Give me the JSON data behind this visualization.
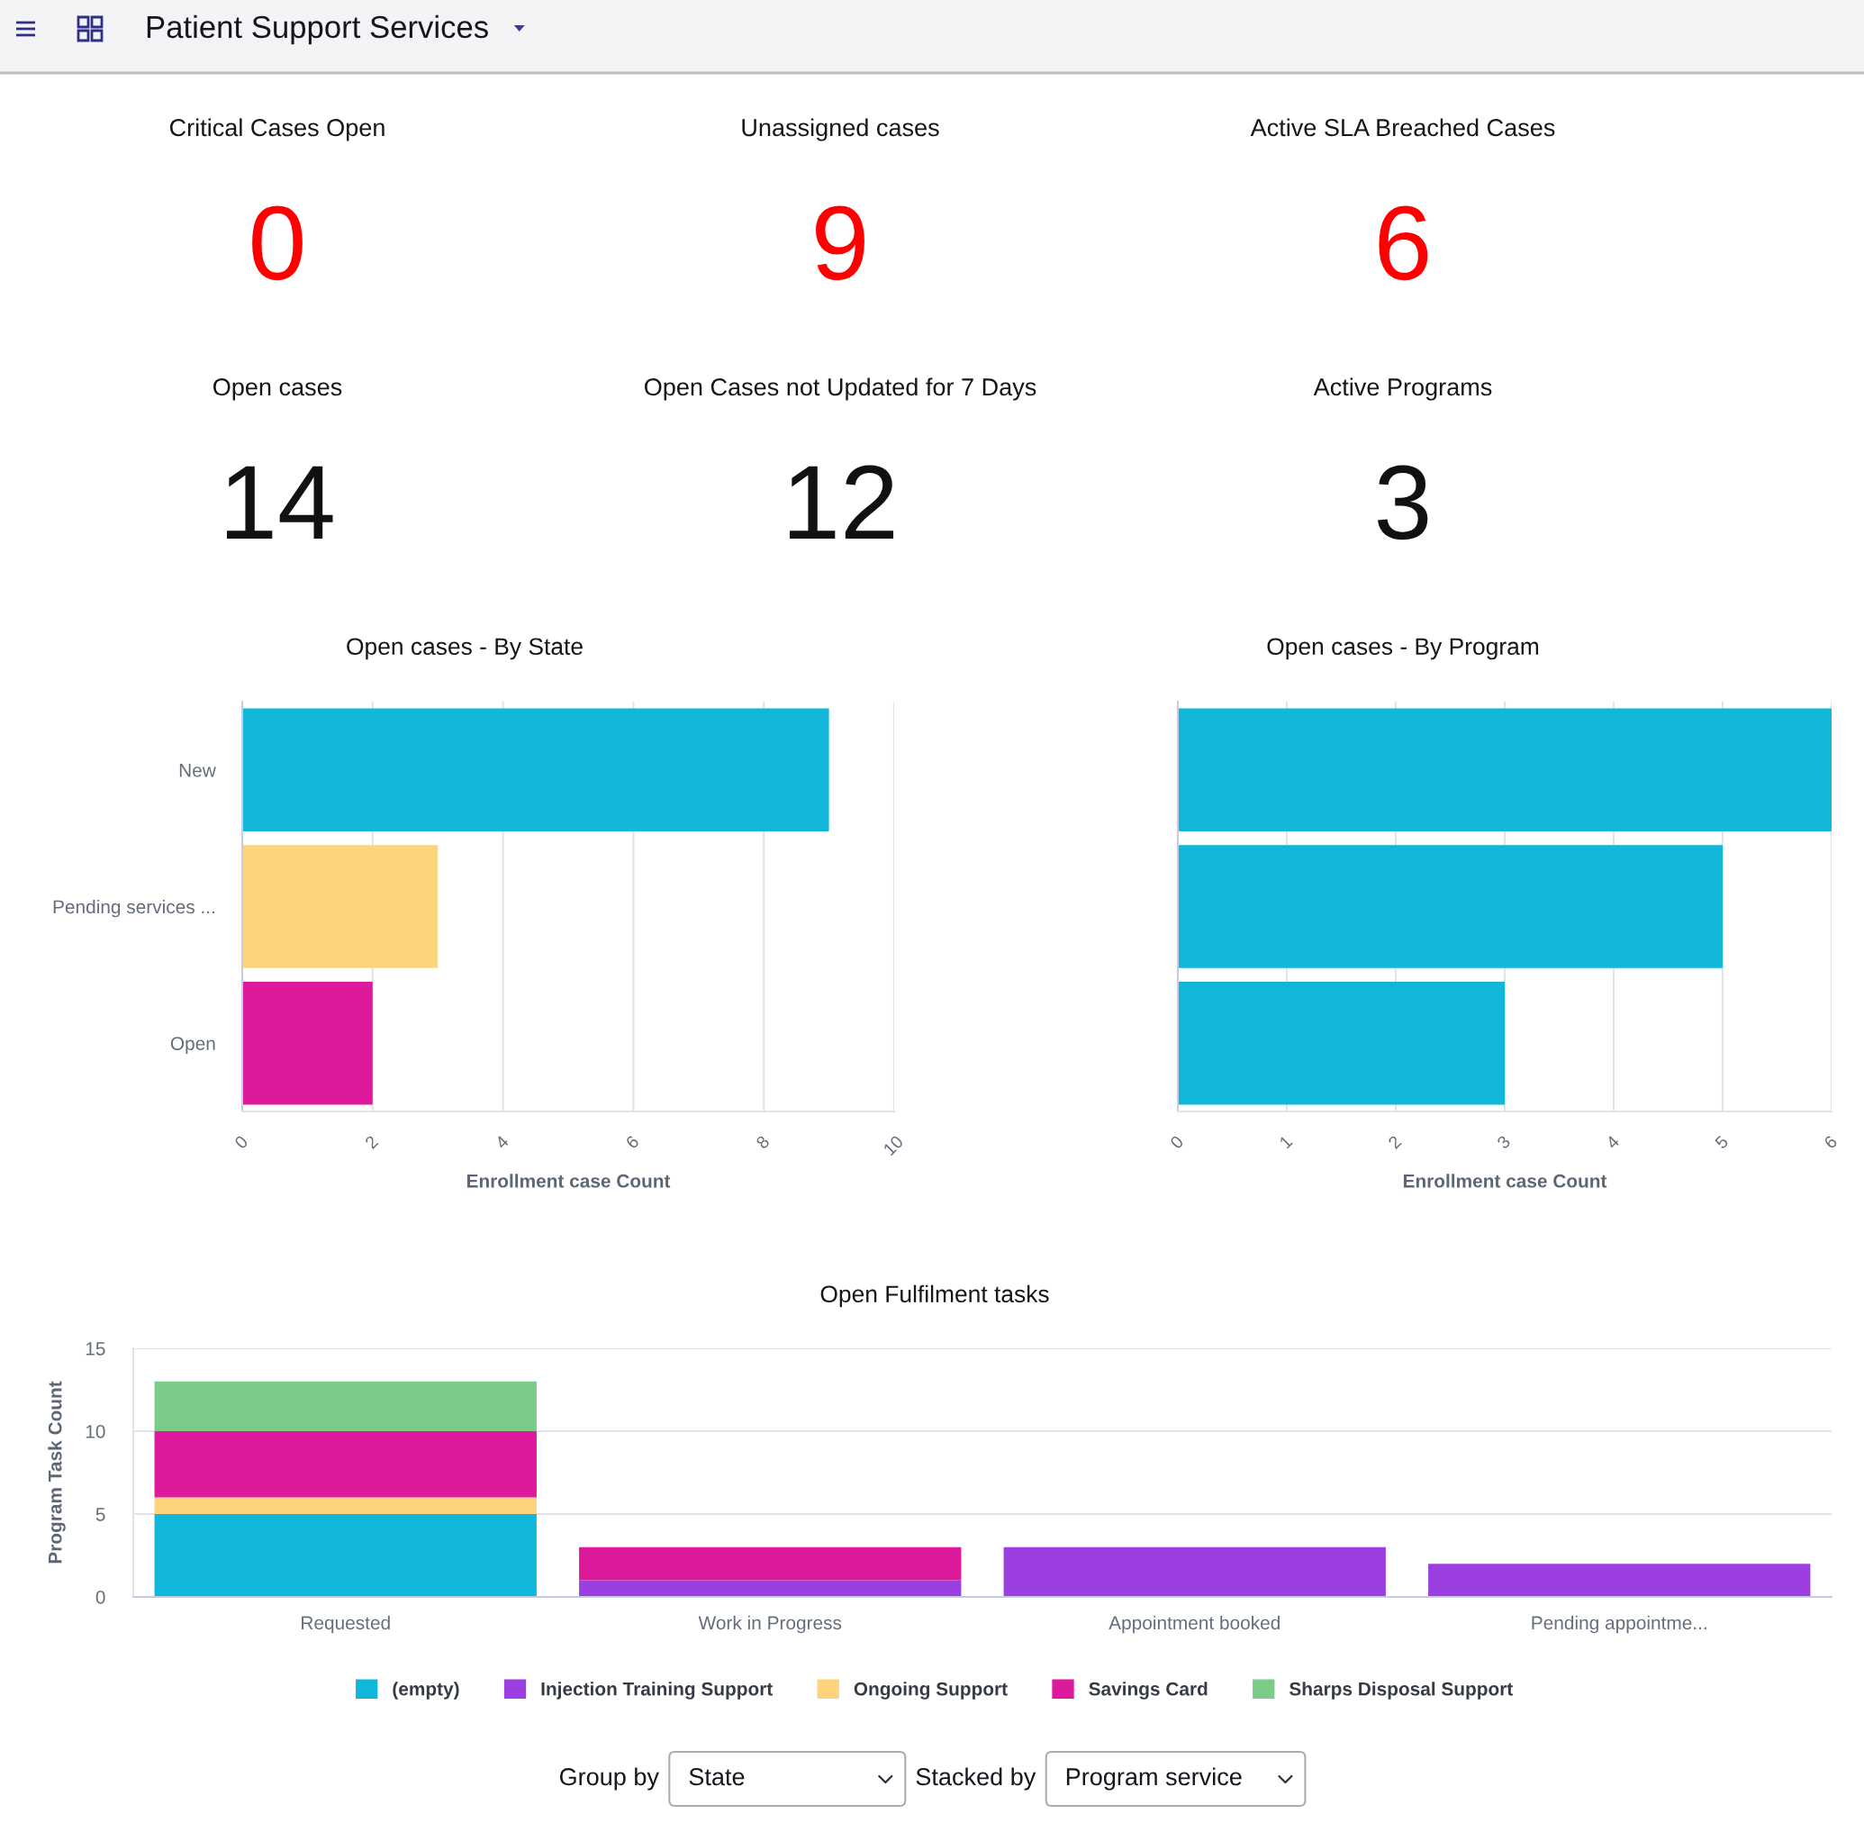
{
  "chart_data": [
    {
      "type": "other",
      "title": "Patient Support Services"
    },
    {
      "type": "other",
      "title": "Critical Cases Open",
      "annotations": [
        "0"
      ],
      "colors": [
        "#ff0000"
      ]
    },
    {
      "type": "other",
      "title": "Unassigned cases",
      "annotations": [
        "9"
      ],
      "colors": [
        "#ff0000"
      ]
    },
    {
      "type": "other",
      "title": "Active SLA Breached Cases",
      "annotations": [
        "6"
      ],
      "colors": [
        "#ff0000"
      ]
    },
    {
      "type": "other",
      "title": "Open cases",
      "annotations": [
        "14"
      ],
      "colors": [
        "#111111"
      ]
    },
    {
      "type": "other",
      "title": "Open Cases not Updated for 7 Days",
      "annotations": [
        "12"
      ],
      "colors": [
        "#111111"
      ]
    },
    {
      "type": "other",
      "title": "Active Programs",
      "annotations": [
        "3"
      ],
      "colors": [
        "#111111"
      ]
    },
    {
      "type": "bar",
      "orientation": "horizontal",
      "title": "Open cases - By State",
      "xlabel": "Enrollment case Count",
      "categories": [
        "New",
        "Pending services ...",
        "Open"
      ],
      "values": [
        9,
        3,
        2
      ],
      "colors": [
        "#10b7d9",
        "#fdd47c",
        "#dc1a9b"
      ],
      "xlim": [
        0,
        10
      ],
      "xticks": [
        0,
        2,
        4,
        6,
        8,
        10
      ],
      "grid": "x"
    },
    {
      "type": "bar",
      "orientation": "horizontal",
      "title": "Open cases - By Program",
      "xlabel": "Enrollment case Count",
      "categories": [
        null,
        null,
        null
      ],
      "values": [
        6,
        5,
        3
      ],
      "colors": [
        "#10b7d9",
        "#10b7d9",
        "#10b7d9"
      ],
      "xlim": [
        0,
        6
      ],
      "xticks": [
        0,
        1,
        2,
        3,
        4,
        5,
        6
      ],
      "grid": "x",
      "tick_labels": "x"
    },
    {
      "type": "bar",
      "stacked": true,
      "title": "Open Fulfilment tasks",
      "ylabel": "Program Task Count",
      "categories": [
        "Requested",
        "Work in Progress",
        "Appointment booked",
        "Pending appointme..."
      ],
      "series": [
        {
          "name": "(empty)",
          "color": "#10b7d9",
          "values": [
            5,
            null,
            null,
            null
          ]
        },
        {
          "name": "Injection Training Support",
          "color": "#9b3fe0",
          "values": [
            null,
            1,
            3,
            2
          ]
        },
        {
          "name": "Ongoing Support",
          "color": "#fdd47c",
          "values": [
            1,
            null,
            null,
            null
          ]
        },
        {
          "name": "Savings Card",
          "color": "#dc1a9b",
          "values": [
            4,
            2,
            null,
            null
          ]
        },
        {
          "name": "Sharps Disposal Support",
          "color": "#7ccb88",
          "values": [
            3,
            null,
            null,
            null
          ]
        }
      ],
      "ylim": [
        0,
        15
      ],
      "yticks": [
        0,
        5,
        10,
        15
      ],
      "grid": "y",
      "legend": "bottom"
    },
    {
      "type": "other",
      "annotations": [
        "Group by",
        "State",
        "Stacked by",
        "Program service"
      ]
    }
  ]
}
